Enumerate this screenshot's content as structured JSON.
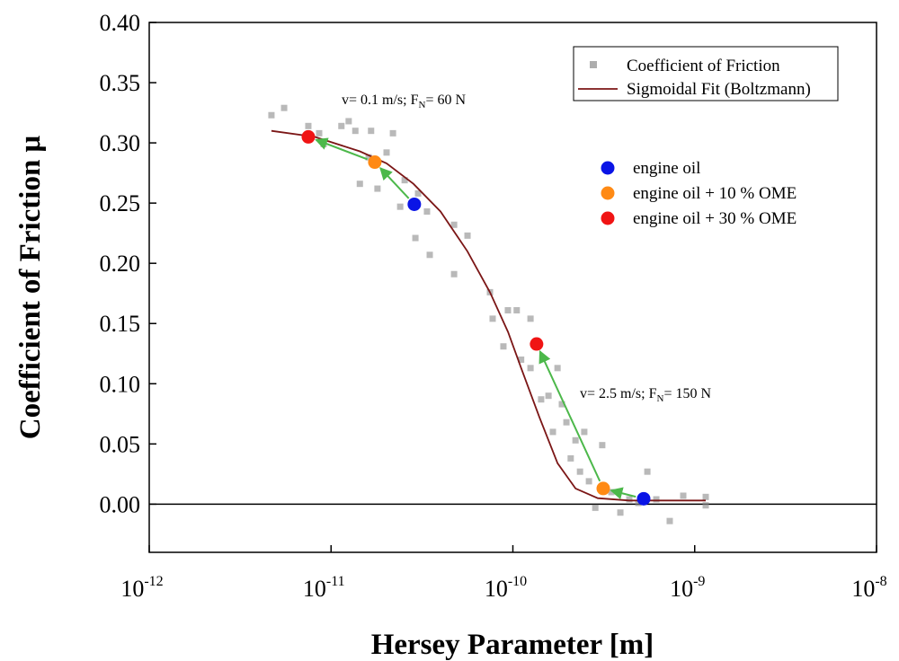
{
  "chart_data": {
    "type": "scatter",
    "x_label": "Hersey Parameter [m]",
    "y_label": "Coefficient of Friction μ",
    "xscale": "log",
    "xlim": [
      1e-12,
      1e-08
    ],
    "xticks": [
      {
        "value": 1e-12,
        "label": "10",
        "exponent": "-12"
      },
      {
        "value": 1e-11,
        "label": "10",
        "exponent": "-11"
      },
      {
        "value": 1e-10,
        "label": "10",
        "exponent": "-10"
      },
      {
        "value": 1e-09,
        "label": "10",
        "exponent": "-9"
      },
      {
        "value": 1e-08,
        "label": "10",
        "exponent": "-8"
      }
    ],
    "ylim": [
      -0.04,
      0.4
    ],
    "yticks": [
      {
        "value": 0,
        "label": "0.00"
      },
      0.05,
      {
        "value": 0.1,
        "label": "0.10"
      },
      0.15,
      {
        "value": 0.2,
        "label": "0.20"
      },
      0.25,
      {
        "value": 0.3,
        "label": "0.30"
      },
      0.35,
      {
        "value": 0.4,
        "label": "0.40"
      }
    ],
    "grid": false,
    "reference_line": 0,
    "measurements": {
      "name": "Coefficient of Friction",
      "color": "#8a8a8a",
      "x": [
        4.7e-12,
        5.52e-12,
        7.5e-12,
        9.1e-12,
        1.14e-11,
        1.25e-11,
        1.36e-11,
        1.44e-11,
        1.61e-11,
        1.66e-11,
        1.8e-11,
        2.02e-11,
        2.19e-11,
        2.4e-11,
        2.54e-11,
        2.91e-11,
        3.37e-11,
        3.49e-11,
        4.75e-11,
        4.75e-11,
        5.63e-11,
        7.48e-11,
        7.74e-11,
        8.87e-11,
        1.05e-10,
        1.11e-10,
        1.25e-10,
        1.25e-10,
        1.43e-10,
        1.57e-10,
        1.66e-10,
        1.76e-10,
        1.86e-10,
        2.08e-10,
        2.21e-10,
        2.47e-10,
        2.62e-10,
        2.84e-10,
        3.1e-10,
        3.48e-10,
        3.9e-10,
        4.37e-10,
        5.49e-10,
        6.15e-10,
        7.29e-10,
        8.65e-10,
        1.15e-09,
        1.15e-09,
        8.6e-12,
        3.01e-11,
        9.39e-11,
        1.97e-10,
        2.34e-10,
        4.9e-10
      ],
      "values": [
        0.323,
        0.329,
        0.314,
        0.299,
        0.314,
        0.318,
        0.31,
        0.266,
        0.288,
        0.31,
        0.262,
        0.292,
        0.308,
        0.247,
        0.269,
        0.221,
        0.243,
        0.207,
        0.232,
        0.191,
        0.223,
        0.176,
        0.154,
        0.131,
        0.161,
        0.12,
        0.154,
        0.113,
        0.087,
        0.09,
        0.06,
        0.113,
        0.083,
        0.038,
        0.053,
        0.06,
        0.019,
        -0.003,
        0.049,
        0.01,
        -0.007,
        0.004,
        0.027,
        0.004,
        -0.014,
        0.007,
        0.006,
        -0.001,
        0.308,
        0.258,
        0.161,
        0.068,
        0.027,
        0.001
      ]
    },
    "fit": {
      "name": "Sigmoidal Fit (Boltzmann)",
      "color": "#7b1616",
      "x": [
        4.7e-12,
        8.13e-12,
        1.44e-11,
        2.02e-11,
        2.84e-11,
        4e-11,
        5.62e-11,
        7.48e-11,
        9.4e-11,
        1.11e-10,
        1.4e-10,
        1.76e-10,
        2.21e-10,
        2.93e-10,
        4.36e-10,
        1.15e-09
      ],
      "values": [
        0.31,
        0.305,
        0.293,
        0.283,
        0.266,
        0.243,
        0.21,
        0.176,
        0.143,
        0.113,
        0.072,
        0.034,
        0.013,
        0.005,
        0.003,
        0.003
      ]
    },
    "series": [
      {
        "name": "engine oil",
        "color": "#0a14e6",
        "x": [
          2.87e-11,
          5.24e-10
        ],
        "values": [
          0.249,
          0.0045
        ]
      },
      {
        "name": "engine oil + 10 % OME",
        "color": "#ff8a14",
        "x": [
          1.74e-11,
          3.14e-10
        ],
        "values": [
          0.284,
          0.013
        ]
      },
      {
        "name": "engine oil + 30 % OME",
        "color": "#f01414",
        "x": [
          7.5e-12,
          1.35e-10
        ],
        "values": [
          0.305,
          0.133
        ]
      }
    ],
    "arrow_color": "#4cb84a",
    "annotations": [
      {
        "parts": [
          "v= 0.1 m/s; F",
          "N",
          "= 60 N"
        ]
      },
      {
        "parts": [
          "v= 2.5 m/s; F",
          "N",
          "= 150 N"
        ]
      }
    ]
  }
}
